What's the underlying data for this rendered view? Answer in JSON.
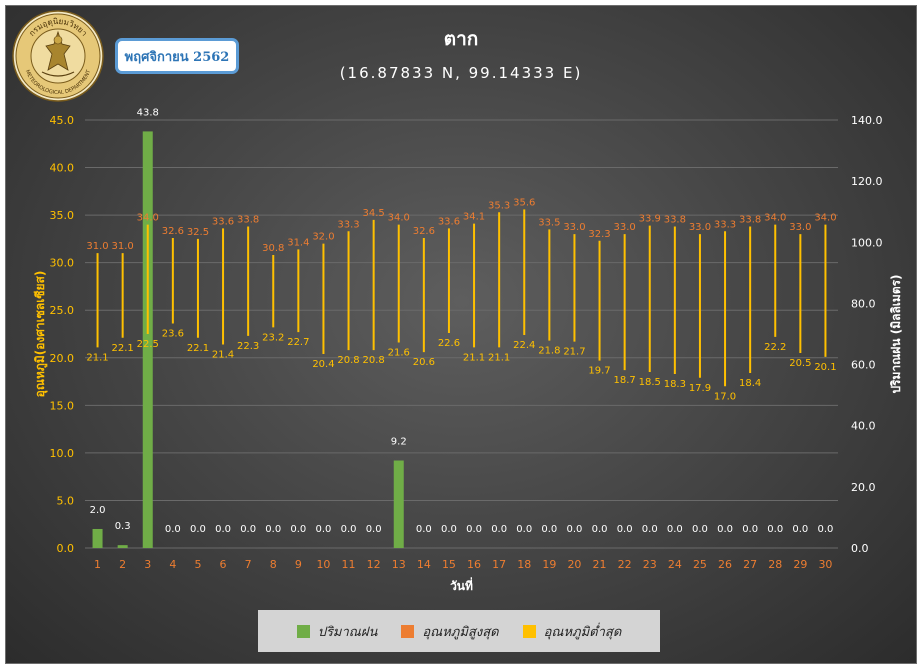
{
  "header": {
    "month_label": "พฤศจิกายน 2562",
    "title": "ตาก",
    "subtitle": "(16.87833 N, 99.14333 E)"
  },
  "logo": {
    "top_text": "กรมอุตุนิยมวิทยา",
    "bottom_text": "METEOROLOGICAL DEPARTMENT"
  },
  "colors": {
    "rain": "#70ad47",
    "max_temp": "#ed7d31",
    "min_temp": "#ffc000",
    "left_axis": "#ffc000",
    "grid": "#6a6a6a"
  },
  "chart_data": {
    "type": "bar",
    "xlabel": "วันที่",
    "ylabel_left": "อุณหภูมิ(องศาเซลเซียส)",
    "ylabel_right": "ปริมาณฝน (มิลลิเมตร)",
    "ylim_left": [
      0,
      45
    ],
    "ylim_right": [
      0,
      140
    ],
    "yticks_left": [
      "0.0",
      "5.0",
      "10.0",
      "15.0",
      "20.0",
      "25.0",
      "30.0",
      "35.0",
      "40.0",
      "45.0"
    ],
    "yticks_right": [
      "0.0",
      "20.0",
      "40.0",
      "60.0",
      "80.0",
      "100.0",
      "120.0",
      "140.0"
    ],
    "grid": true,
    "legend_position": "bottom",
    "categories": [
      "1",
      "2",
      "3",
      "4",
      "5",
      "6",
      "7",
      "8",
      "9",
      "10",
      "11",
      "12",
      "13",
      "14",
      "15",
      "16",
      "17",
      "18",
      "19",
      "20",
      "21",
      "22",
      "23",
      "24",
      "25",
      "26",
      "27",
      "28",
      "29",
      "30"
    ],
    "series": [
      {
        "name": "ปริมาณฝน",
        "type": "bar",
        "axis": "left",
        "values": [
          2.0,
          0.3,
          43.8,
          0.0,
          0.0,
          0.0,
          0.0,
          0.0,
          0.0,
          0.0,
          0.0,
          0.0,
          9.2,
          0.0,
          0.0,
          0.0,
          0.0,
          0.0,
          0.0,
          0.0,
          0.0,
          0.0,
          0.0,
          0.0,
          0.0,
          0.0,
          0.0,
          0.0,
          0.0,
          0.0
        ]
      },
      {
        "name": "อุณหภูมิสูงสุด",
        "type": "range-top",
        "axis": "left",
        "values": [
          31.0,
          31.0,
          34.0,
          32.6,
          32.5,
          33.6,
          33.8,
          30.8,
          31.4,
          32.0,
          33.3,
          34.5,
          34.0,
          32.6,
          33.6,
          34.1,
          35.3,
          35.6,
          33.5,
          33.0,
          32.3,
          33.0,
          33.9,
          33.8,
          33.0,
          33.3,
          33.8,
          34.0,
          33.0,
          34.0
        ]
      },
      {
        "name": "อุณหภูมิต่ำสุด",
        "type": "range-bottom",
        "axis": "left",
        "values": [
          21.1,
          22.1,
          22.5,
          23.6,
          22.1,
          21.4,
          22.3,
          23.2,
          22.7,
          20.4,
          20.8,
          20.8,
          21.6,
          20.6,
          22.6,
          21.1,
          21.1,
          22.4,
          21.8,
          21.7,
          19.7,
          18.7,
          18.5,
          18.3,
          17.9,
          17.0,
          18.4,
          22.2,
          20.5,
          20.1
        ]
      }
    ]
  }
}
